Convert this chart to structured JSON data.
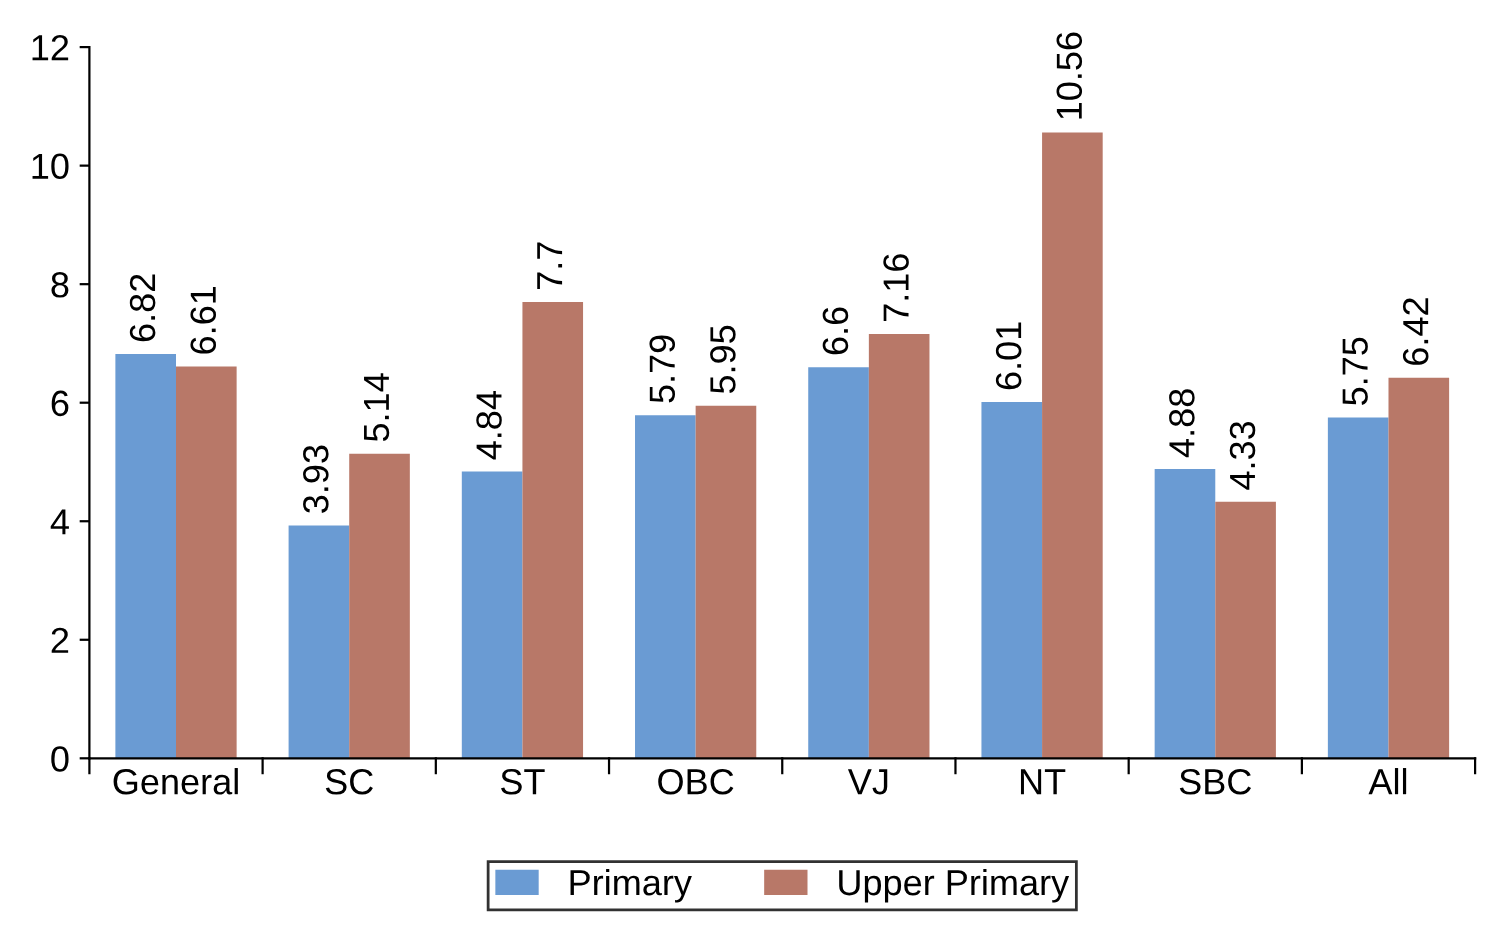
{
  "chart_data": {
    "type": "bar",
    "categories": [
      "General",
      "SC",
      "ST",
      "OBC",
      "VJ",
      "NT",
      "SBC",
      "All"
    ],
    "series": [
      {
        "name": "Primary",
        "color": "#6a9bd3",
        "values": [
          6.82,
          3.93,
          4.84,
          5.79,
          6.6,
          6.01,
          4.88,
          5.75
        ]
      },
      {
        "name": "Upper Primary",
        "color": "#b87868",
        "values": [
          6.61,
          5.14,
          7.7,
          5.95,
          7.16,
          10.56,
          4.33,
          6.42
        ]
      }
    ],
    "ylim": [
      0,
      12
    ],
    "yticks": [
      0,
      2,
      4,
      6,
      8,
      10,
      12
    ],
    "grid": false,
    "legend": "bottom",
    "data_labels": true
  }
}
